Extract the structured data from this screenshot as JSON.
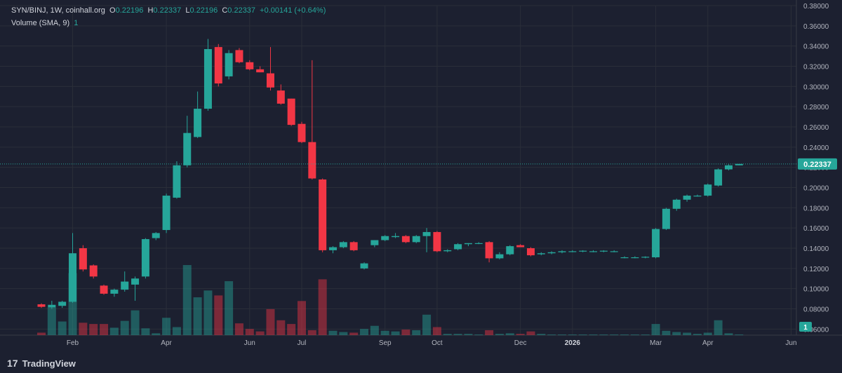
{
  "header": {
    "symbol": "SYN/BINJ, 1W, coinhall.org",
    "o_label": "O",
    "o_value": "0.22196",
    "h_label": "H",
    "h_value": "0.22337",
    "l_label": "L",
    "l_value": "0.22196",
    "c_label": "C",
    "c_value": "0.22337",
    "change": "+0.00141 (+0.64%)",
    "volume_label": "Volume (SMA, 9)",
    "volume_value": "1"
  },
  "footer": {
    "brand": "TradingView",
    "brand_mark": "17"
  },
  "colors": {
    "background": "#1c2030",
    "grid": "#2a2e39",
    "up": "#26a69a",
    "down": "#f23645",
    "text": "#b2b5be",
    "last_price_bg": "#26a69a"
  },
  "chart_data": {
    "type": "candlestick",
    "y_range": [
      0.054,
      0.38
    ],
    "y_ticks": [
      "0.06000",
      "0.08000",
      "0.10000",
      "0.12000",
      "0.14000",
      "0.16000",
      "0.18000",
      "0.20000",
      "0.22000",
      "0.24000",
      "0.26000",
      "0.28000",
      "0.30000",
      "0.32000",
      "0.34000",
      "0.36000",
      "0.38000"
    ],
    "x_ticks": [
      {
        "label": "Feb",
        "week": 3,
        "bold": false
      },
      {
        "label": "Apr",
        "week": 12,
        "bold": false
      },
      {
        "label": "Jun",
        "week": 20,
        "bold": false
      },
      {
        "label": "Jul",
        "week": 25,
        "bold": false
      },
      {
        "label": "Sep",
        "week": 33,
        "bold": false
      },
      {
        "label": "Oct",
        "week": 38,
        "bold": false
      },
      {
        "label": "Dec",
        "week": 46,
        "bold": false
      },
      {
        "label": "2026",
        "week": 51,
        "bold": true
      },
      {
        "label": "Mar",
        "week": 59,
        "bold": false
      },
      {
        "label": "Apr",
        "week": 64,
        "bold": false
      },
      {
        "label": "Jun",
        "week": 72,
        "bold": false
      }
    ],
    "last_price": "0.22337",
    "last_volume": "1",
    "candles": [
      {
        "o": 0.0845,
        "h": 0.0855,
        "l": 0.081,
        "c": 0.082,
        "v": 4
      },
      {
        "o": 0.0815,
        "h": 0.088,
        "l": 0.08,
        "c": 0.084,
        "v": 45
      },
      {
        "o": 0.083,
        "h": 0.088,
        "l": 0.081,
        "c": 0.087,
        "v": 22
      },
      {
        "o": 0.087,
        "h": 0.155,
        "l": 0.086,
        "c": 0.135,
        "v": 100
      },
      {
        "o": 0.14,
        "h": 0.143,
        "l": 0.117,
        "c": 0.119,
        "v": 20
      },
      {
        "o": 0.123,
        "h": 0.124,
        "l": 0.11,
        "c": 0.112,
        "v": 18
      },
      {
        "o": 0.103,
        "h": 0.104,
        "l": 0.094,
        "c": 0.095,
        "v": 18
      },
      {
        "o": 0.095,
        "h": 0.1,
        "l": 0.092,
        "c": 0.099,
        "v": 12
      },
      {
        "o": 0.099,
        "h": 0.117,
        "l": 0.097,
        "c": 0.107,
        "v": 23
      },
      {
        "o": 0.104,
        "h": 0.112,
        "l": 0.088,
        "c": 0.11,
        "v": 40
      },
      {
        "o": 0.112,
        "h": 0.15,
        "l": 0.11,
        "c": 0.149,
        "v": 11
      },
      {
        "o": 0.15,
        "h": 0.156,
        "l": 0.148,
        "c": 0.155,
        "v": 3
      },
      {
        "o": 0.158,
        "h": 0.194,
        "l": 0.155,
        "c": 0.192,
        "v": 28
      },
      {
        "o": 0.19,
        "h": 0.226,
        "l": 0.189,
        "c": 0.222,
        "v": 13
      },
      {
        "o": 0.222,
        "h": 0.271,
        "l": 0.22,
        "c": 0.254,
        "v": 113
      },
      {
        "o": 0.25,
        "h": 0.295,
        "l": 0.249,
        "c": 0.278,
        "v": 61
      },
      {
        "o": 0.278,
        "h": 0.347,
        "l": 0.276,
        "c": 0.337,
        "v": 72
      },
      {
        "o": 0.339,
        "h": 0.342,
        "l": 0.3,
        "c": 0.303,
        "v": 64
      },
      {
        "o": 0.31,
        "h": 0.336,
        "l": 0.307,
        "c": 0.333,
        "v": 87
      },
      {
        "o": 0.336,
        "h": 0.338,
        "l": 0.323,
        "c": 0.324,
        "v": 19
      },
      {
        "o": 0.324,
        "h": 0.326,
        "l": 0.316,
        "c": 0.317,
        "v": 10
      },
      {
        "o": 0.317,
        "h": 0.32,
        "l": 0.314,
        "c": 0.314,
        "v": 6
      },
      {
        "o": 0.313,
        "h": 0.339,
        "l": 0.296,
        "c": 0.299,
        "v": 42
      },
      {
        "o": 0.296,
        "h": 0.302,
        "l": 0.282,
        "c": 0.283,
        "v": 24
      },
      {
        "o": 0.288,
        "h": 0.288,
        "l": 0.261,
        "c": 0.262,
        "v": 18
      },
      {
        "o": 0.263,
        "h": 0.265,
        "l": 0.244,
        "c": 0.245,
        "v": 55
      },
      {
        "o": 0.245,
        "h": 0.326,
        "l": 0.208,
        "c": 0.209,
        "v": 8
      },
      {
        "o": 0.208,
        "h": 0.209,
        "l": 0.136,
        "c": 0.138,
        "v": 90
      },
      {
        "o": 0.138,
        "h": 0.142,
        "l": 0.135,
        "c": 0.141,
        "v": 7
      },
      {
        "o": 0.141,
        "h": 0.147,
        "l": 0.14,
        "c": 0.146,
        "v": 5
      },
      {
        "o": 0.146,
        "h": 0.147,
        "l": 0.137,
        "c": 0.138,
        "v": 4
      },
      {
        "o": 0.12,
        "h": 0.126,
        "l": 0.119,
        "c": 0.125,
        "v": 10
      },
      {
        "o": 0.143,
        "h": 0.148,
        "l": 0.141,
        "c": 0.148,
        "v": 15
      },
      {
        "o": 0.148,
        "h": 0.153,
        "l": 0.147,
        "c": 0.152,
        "v": 7
      },
      {
        "o": 0.151,
        "h": 0.155,
        "l": 0.15,
        "c": 0.152,
        "v": 6
      },
      {
        "o": 0.152,
        "h": 0.153,
        "l": 0.145,
        "c": 0.146,
        "v": 9
      },
      {
        "o": 0.146,
        "h": 0.153,
        "l": 0.145,
        "c": 0.152,
        "v": 8
      },
      {
        "o": 0.152,
        "h": 0.16,
        "l": 0.136,
        "c": 0.156,
        "v": 33
      },
      {
        "o": 0.156,
        "h": 0.157,
        "l": 0.136,
        "c": 0.137,
        "v": 13
      },
      {
        "o": 0.137,
        "h": 0.139,
        "l": 0.136,
        "c": 0.138,
        "v": 2
      },
      {
        "o": 0.139,
        "h": 0.145,
        "l": 0.138,
        "c": 0.144,
        "v": 2
      },
      {
        "o": 0.144,
        "h": 0.145,
        "l": 0.142,
        "c": 0.145,
        "v": 2
      },
      {
        "o": 0.145,
        "h": 0.146,
        "l": 0.144,
        "c": 0.145,
        "v": 1
      },
      {
        "o": 0.146,
        "h": 0.147,
        "l": 0.126,
        "c": 0.13,
        "v": 8
      },
      {
        "o": 0.13,
        "h": 0.136,
        "l": 0.129,
        "c": 0.134,
        "v": 2
      },
      {
        "o": 0.134,
        "h": 0.143,
        "l": 0.133,
        "c": 0.142,
        "v": 3
      },
      {
        "o": 0.143,
        "h": 0.144,
        "l": 0.141,
        "c": 0.141,
        "v": 2
      },
      {
        "o": 0.14,
        "h": 0.141,
        "l": 0.132,
        "c": 0.133,
        "v": 6
      },
      {
        "o": 0.134,
        "h": 0.136,
        "l": 0.133,
        "c": 0.135,
        "v": 2
      },
      {
        "o": 0.135,
        "h": 0.137,
        "l": 0.134,
        "c": 0.136,
        "v": 1
      },
      {
        "o": 0.136,
        "h": 0.138,
        "l": 0.135,
        "c": 0.137,
        "v": 1
      },
      {
        "o": 0.137,
        "h": 0.138,
        "l": 0.136,
        "c": 0.137,
        "v": 1
      },
      {
        "o": 0.137,
        "h": 0.138,
        "l": 0.136,
        "c": 0.1375,
        "v": 1
      },
      {
        "o": 0.137,
        "h": 0.138,
        "l": 0.136,
        "c": 0.137,
        "v": 1
      },
      {
        "o": 0.137,
        "h": 0.138,
        "l": 0.136,
        "c": 0.1375,
        "v": 1
      },
      {
        "o": 0.137,
        "h": 0.138,
        "l": 0.136,
        "c": 0.137,
        "v": 1
      },
      {
        "o": 0.131,
        "h": 0.132,
        "l": 0.13,
        "c": 0.131,
        "v": 1
      },
      {
        "o": 0.131,
        "h": 0.132,
        "l": 0.13,
        "c": 0.131,
        "v": 1
      },
      {
        "o": 0.131,
        "h": 0.132,
        "l": 0.13,
        "c": 0.1315,
        "v": 1
      },
      {
        "o": 0.131,
        "h": 0.16,
        "l": 0.13,
        "c": 0.159,
        "v": 18
      },
      {
        "o": 0.159,
        "h": 0.18,
        "l": 0.158,
        "c": 0.179,
        "v": 7
      },
      {
        "o": 0.179,
        "h": 0.189,
        "l": 0.177,
        "c": 0.188,
        "v": 5
      },
      {
        "o": 0.188,
        "h": 0.193,
        "l": 0.186,
        "c": 0.192,
        "v": 4
      },
      {
        "o": 0.192,
        "h": 0.193,
        "l": 0.191,
        "c": 0.192,
        "v": 2
      },
      {
        "o": 0.192,
        "h": 0.204,
        "l": 0.191,
        "c": 0.203,
        "v": 4
      },
      {
        "o": 0.202,
        "h": 0.219,
        "l": 0.201,
        "c": 0.218,
        "v": 24
      },
      {
        "o": 0.218,
        "h": 0.223,
        "l": 0.217,
        "c": 0.222,
        "v": 3
      },
      {
        "o": 0.222,
        "h": 0.2234,
        "l": 0.222,
        "c": 0.2234,
        "v": 1
      }
    ]
  }
}
